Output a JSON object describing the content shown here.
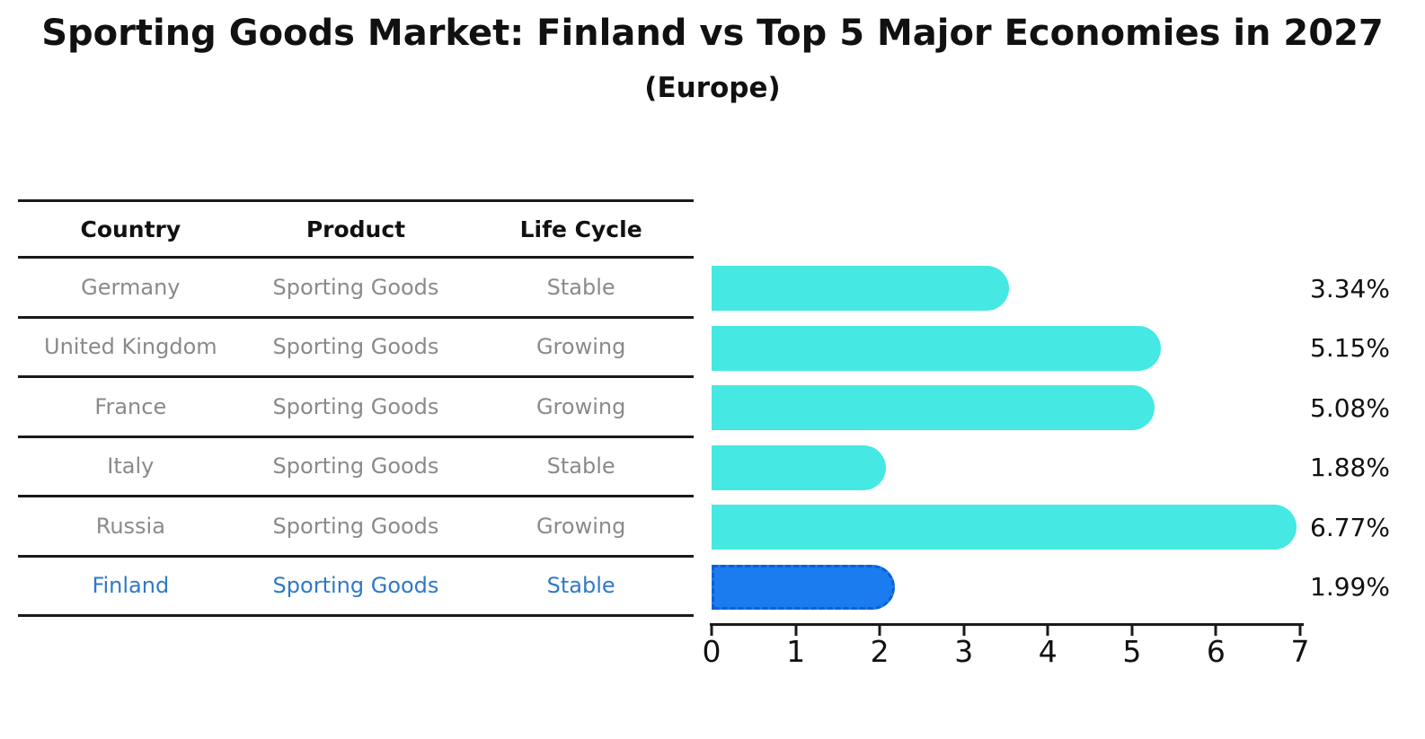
{
  "title": "Sporting Goods Market: Finland vs Top 5 Major Economies in 2027",
  "subtitle": "(Europe)",
  "table": {
    "headers": [
      "Country",
      "Product",
      "Life Cycle"
    ],
    "rows": [
      {
        "country": "Germany",
        "product": "Sporting Goods",
        "life_cycle": "Stable"
      },
      {
        "country": "United Kingdom",
        "product": "Sporting Goods",
        "life_cycle": "Growing"
      },
      {
        "country": "France",
        "product": "Sporting Goods",
        "life_cycle": "Growing"
      },
      {
        "country": "Italy",
        "product": "Sporting Goods",
        "life_cycle": "Stable"
      },
      {
        "country": "Russia",
        "product": "Sporting Goods",
        "life_cycle": "Growing"
      },
      {
        "country": "Finland",
        "product": "Sporting Goods",
        "life_cycle": "Stable"
      }
    ]
  },
  "chart_data": {
    "type": "bar",
    "orientation": "horizontal",
    "title": "Sporting Goods Market: Finland vs Top 5 Major Economies in 2027",
    "subtitle": "(Europe)",
    "categories": [
      "Germany",
      "United Kingdom",
      "France",
      "Italy",
      "Russia",
      "Finland"
    ],
    "values": [
      3.34,
      5.15,
      5.08,
      1.88,
      6.77,
      1.99
    ],
    "value_labels": [
      "3.34%",
      "5.15%",
      "5.08%",
      "1.88%",
      "6.77%",
      "1.99%"
    ],
    "xlabel": "",
    "ylabel": "",
    "xlim": [
      0,
      7
    ],
    "x_ticks": [
      "0",
      "1",
      "2",
      "3",
      "4",
      "5",
      "6",
      "7"
    ],
    "grid": false,
    "legend": false,
    "highlight_index": 5,
    "bar_color": "#45e8e2",
    "highlight_bar_color": "#1a7cee",
    "highlight_border_color": "#0d5fd6",
    "highlight_text_color": "#2e79c9",
    "row_text_color": "#8a8a8a"
  }
}
